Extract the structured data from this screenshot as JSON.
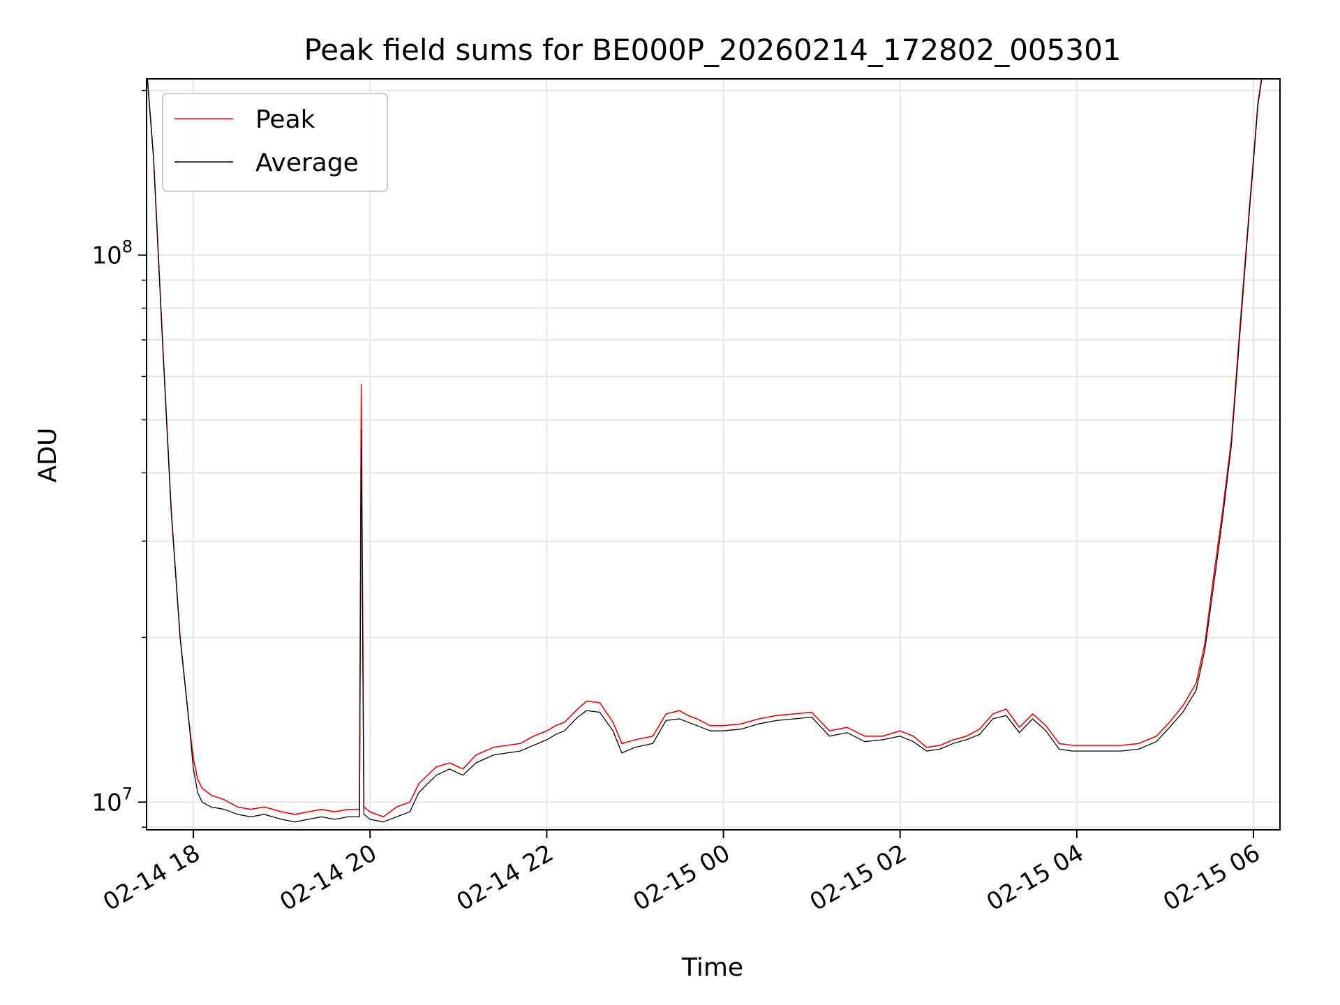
{
  "chart_data": {
    "type": "line",
    "title": "Peak field sums for BE000P_20260214_172802_005301",
    "xlabel": "Time",
    "ylabel": "ADU",
    "yscale": "log",
    "ylim": [
      8900000.0,
      210000000.0
    ],
    "xlim_hours": [
      -0.53,
      12.3
    ],
    "x_unit": "hours since 02-14 18:00",
    "grid": true,
    "legend_position": "top-left",
    "xticks": [
      {
        "label": "02-14 18",
        "hours": 0
      },
      {
        "label": "02-14 20",
        "hours": 2
      },
      {
        "label": "02-14 22",
        "hours": 4
      },
      {
        "label": "02-15 00",
        "hours": 6
      },
      {
        "label": "02-15 02",
        "hours": 8
      },
      {
        "label": "02-15 04",
        "hours": 10
      },
      {
        "label": "02-15 06",
        "hours": 12
      }
    ],
    "yticks": [
      {
        "base": "10",
        "exp": "7",
        "value": 10000000.0
      },
      {
        "base": "10",
        "exp": "8",
        "value": 100000000.0
      }
    ],
    "series": [
      {
        "name": "Peak",
        "color": "#ff0000",
        "x": [
          -0.53,
          -0.45,
          -0.35,
          -0.25,
          -0.15,
          -0.05,
          0.0,
          0.05,
          0.1,
          0.2,
          0.35,
          0.5,
          0.65,
          0.8,
          1.0,
          1.15,
          1.3,
          1.45,
          1.6,
          1.75,
          1.88,
          1.9,
          1.93,
          2.0,
          2.15,
          2.3,
          2.45,
          2.55,
          2.65,
          2.75,
          2.9,
          3.05,
          3.2,
          3.4,
          3.55,
          3.7,
          3.85,
          4.0,
          4.1,
          4.2,
          4.35,
          4.45,
          4.6,
          4.75,
          4.85,
          5.0,
          5.2,
          5.35,
          5.5,
          5.6,
          5.7,
          5.85,
          6.0,
          6.2,
          6.4,
          6.6,
          6.8,
          7.0,
          7.2,
          7.4,
          7.6,
          7.8,
          8.0,
          8.15,
          8.3,
          8.45,
          8.6,
          8.75,
          8.9,
          9.05,
          9.2,
          9.35,
          9.5,
          9.65,
          9.8,
          9.95,
          10.1,
          10.3,
          10.5,
          10.7,
          10.9,
          11.05,
          11.2,
          11.35,
          11.45,
          11.55,
          11.65,
          11.75,
          11.85,
          11.95,
          12.0,
          12.05,
          12.1,
          12.15
        ],
        "y": [
          220000000.0,
          150000000.0,
          70000000.0,
          34000000.0,
          20000000.0,
          14000000.0,
          12000000.0,
          11000000.0,
          10600000.0,
          10300000.0,
          10100000.0,
          9800000.0,
          9700000.0,
          9800000.0,
          9600000.0,
          9500000.0,
          9600000.0,
          9700000.0,
          9600000.0,
          9700000.0,
          9700000.0,
          58000000.0,
          9800000.0,
          9600000.0,
          9400000.0,
          9800000.0,
          10000000.0,
          10800000.0,
          11200000.0,
          11600000.0,
          11800000.0,
          11500000.0,
          12200000.0,
          12600000.0,
          12700000.0,
          12800000.0,
          13200000.0,
          13500000.0,
          13800000.0,
          14000000.0,
          14800000.0,
          15300000.0,
          15200000.0,
          14000000.0,
          12800000.0,
          13000000.0,
          13200000.0,
          14500000.0,
          14700000.0,
          14400000.0,
          14200000.0,
          13800000.0,
          13800000.0,
          13900000.0,
          14200000.0,
          14400000.0,
          14500000.0,
          14600000.0,
          13500000.0,
          13700000.0,
          13200000.0,
          13200000.0,
          13500000.0,
          13200000.0,
          12600000.0,
          12700000.0,
          13000000.0,
          13200000.0,
          13600000.0,
          14500000.0,
          14800000.0,
          13700000.0,
          14500000.0,
          13800000.0,
          12800000.0,
          12700000.0,
          12700000.0,
          12700000.0,
          12700000.0,
          12800000.0,
          13200000.0,
          14000000.0,
          15000000.0,
          16500000.0,
          19500000.0,
          26000000.0,
          34000000.0,
          46000000.0,
          75000000.0,
          120000000.0,
          150000000.0,
          190000000.0,
          215000000.0,
          220000000.0
        ]
      },
      {
        "name": "Average",
        "color": "#000000",
        "x": [
          -0.53,
          -0.45,
          -0.35,
          -0.25,
          -0.15,
          -0.05,
          0.0,
          0.05,
          0.1,
          0.2,
          0.35,
          0.5,
          0.65,
          0.8,
          1.0,
          1.15,
          1.3,
          1.45,
          1.6,
          1.75,
          1.88,
          1.9,
          1.93,
          2.0,
          2.15,
          2.3,
          2.45,
          2.55,
          2.65,
          2.75,
          2.9,
          3.05,
          3.2,
          3.4,
          3.55,
          3.7,
          3.85,
          4.0,
          4.1,
          4.2,
          4.35,
          4.45,
          4.6,
          4.75,
          4.85,
          5.0,
          5.2,
          5.35,
          5.5,
          5.6,
          5.7,
          5.85,
          6.0,
          6.2,
          6.4,
          6.6,
          6.8,
          7.0,
          7.2,
          7.4,
          7.6,
          7.8,
          8.0,
          8.15,
          8.3,
          8.45,
          8.6,
          8.75,
          8.9,
          9.05,
          9.2,
          9.35,
          9.5,
          9.65,
          9.8,
          9.95,
          10.1,
          10.3,
          10.5,
          10.7,
          10.9,
          11.05,
          11.2,
          11.35,
          11.45,
          11.55,
          11.65,
          11.75,
          11.85,
          11.95,
          12.0,
          12.05,
          12.1,
          12.15
        ],
        "y": [
          220000000.0,
          150000000.0,
          70000000.0,
          34000000.0,
          20000000.0,
          14000000.0,
          11500000.0,
          10400000.0,
          10000000.0,
          9800000.0,
          9700000.0,
          9500000.0,
          9400000.0,
          9500000.0,
          9300000.0,
          9200000.0,
          9300000.0,
          9400000.0,
          9300000.0,
          9400000.0,
          9400000.0,
          48000000.0,
          9500000.0,
          9300000.0,
          9200000.0,
          9400000.0,
          9600000.0,
          10400000.0,
          10800000.0,
          11200000.0,
          11500000.0,
          11200000.0,
          11800000.0,
          12200000.0,
          12300000.0,
          12400000.0,
          12700000.0,
          13000000.0,
          13300000.0,
          13500000.0,
          14300000.0,
          14700000.0,
          14600000.0,
          13500000.0,
          12300000.0,
          12600000.0,
          12800000.0,
          14100000.0,
          14200000.0,
          14000000.0,
          13800000.0,
          13500000.0,
          13500000.0,
          13600000.0,
          13900000.0,
          14100000.0,
          14200000.0,
          14300000.0,
          13200000.0,
          13400000.0,
          12900000.0,
          13000000.0,
          13200000.0,
          12900000.0,
          12400000.0,
          12500000.0,
          12800000.0,
          13000000.0,
          13300000.0,
          14200000.0,
          14400000.0,
          13400000.0,
          14200000.0,
          13500000.0,
          12500000.0,
          12400000.0,
          12400000.0,
          12400000.0,
          12400000.0,
          12500000.0,
          12900000.0,
          13700000.0,
          14600000.0,
          16000000.0,
          19000000.0,
          25000000.0,
          33000000.0,
          45000000.0,
          73000000.0,
          118000000.0,
          148000000.0,
          188000000.0,
          213000000.0,
          220000000.0
        ]
      }
    ]
  }
}
